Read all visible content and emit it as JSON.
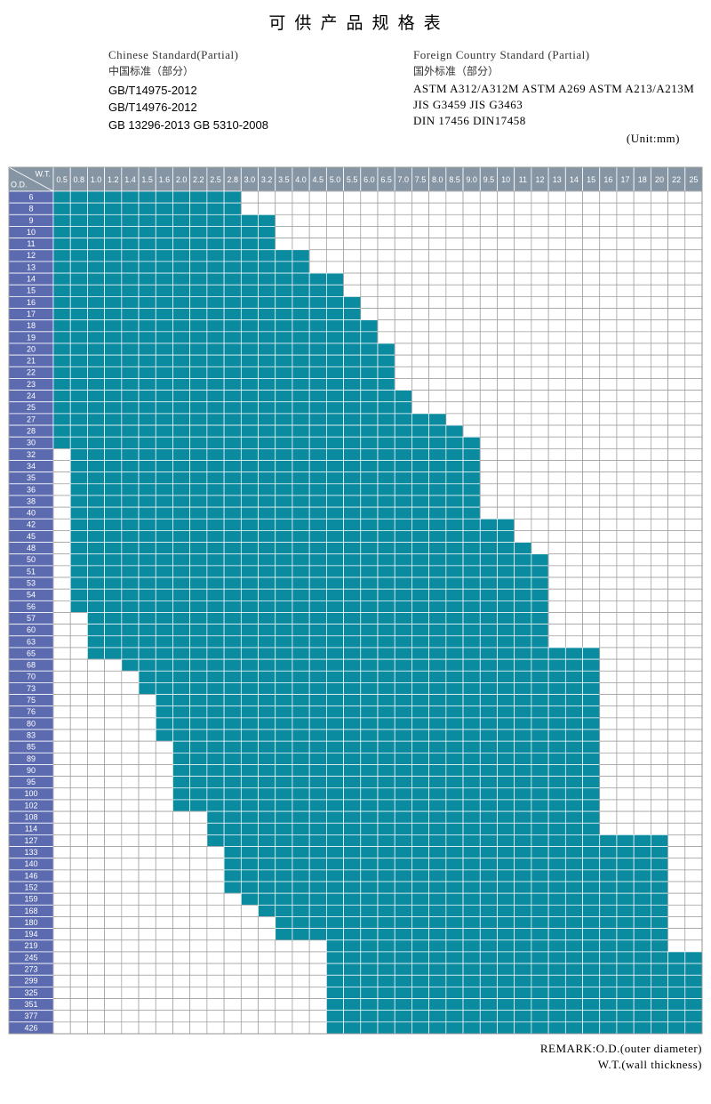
{
  "header": {
    "title": "可 供 产 品 规 格 表",
    "left": {
      "heading": "Chinese Standard(Partial)",
      "heading_cn": "中国标准（部分）",
      "lines": [
        "GB/T14975-2012",
        "GB/T14976-2012",
        "GB 13296-2013 GB 5310-2008"
      ]
    },
    "right": {
      "heading": "Foreign Country Standard (Partial)",
      "heading_cn": "国外标准（部分）",
      "lines": [
        "ASTM A312/A312M  ASTM A269 ASTM A213/A213M",
        "JIS G3459 JIS G3463",
        "DIN 17456 DIN17458"
      ]
    },
    "unit": "(Unit:mm)"
  },
  "table": {
    "corner_wt": "W.T.",
    "corner_od": "O.D.",
    "columns": [
      "0.5",
      "0.8",
      "1.0",
      "1.2",
      "1.4",
      "1.5",
      "1.6",
      "2.0",
      "2.2",
      "2.5",
      "2.8",
      "3.0",
      "3.2",
      "3.5",
      "4.0",
      "4.5",
      "5.0",
      "5.5",
      "6.0",
      "6.5",
      "7.0",
      "7.5",
      "8.0",
      "8.5",
      "9.0",
      "9.5",
      "10",
      "11",
      "12",
      "13",
      "14",
      "15",
      "16",
      "17",
      "18",
      "20",
      "22",
      "25"
    ],
    "rows": [
      {
        "od": "6",
        "fill": [
          0,
          10
        ]
      },
      {
        "od": "8",
        "fill": [
          0,
          10
        ]
      },
      {
        "od": "9",
        "fill": [
          0,
          12
        ]
      },
      {
        "od": "10",
        "fill": [
          0,
          12
        ]
      },
      {
        "od": "11",
        "fill": [
          0,
          12
        ]
      },
      {
        "od": "12",
        "fill": [
          0,
          14
        ]
      },
      {
        "od": "13",
        "fill": [
          0,
          14
        ]
      },
      {
        "od": "14",
        "fill": [
          0,
          16
        ]
      },
      {
        "od": "15",
        "fill": [
          0,
          16
        ]
      },
      {
        "od": "16",
        "fill": [
          0,
          17
        ]
      },
      {
        "od": "17",
        "fill": [
          0,
          17
        ]
      },
      {
        "od": "18",
        "fill": [
          0,
          18
        ]
      },
      {
        "od": "19",
        "fill": [
          0,
          18
        ]
      },
      {
        "od": "20",
        "fill": [
          0,
          19
        ]
      },
      {
        "od": "21",
        "fill": [
          0,
          19
        ]
      },
      {
        "od": "22",
        "fill": [
          0,
          19
        ]
      },
      {
        "od": "23",
        "fill": [
          0,
          19
        ]
      },
      {
        "od": "24",
        "fill": [
          0,
          20
        ]
      },
      {
        "od": "25",
        "fill": [
          0,
          20
        ]
      },
      {
        "od": "27",
        "fill": [
          0,
          22
        ]
      },
      {
        "od": "28",
        "fill": [
          0,
          23
        ]
      },
      {
        "od": "30",
        "fill": [
          0,
          24
        ]
      },
      {
        "od": "32",
        "fill": [
          1,
          24
        ]
      },
      {
        "od": "34",
        "fill": [
          1,
          24
        ]
      },
      {
        "od": "35",
        "fill": [
          1,
          24
        ]
      },
      {
        "od": "36",
        "fill": [
          1,
          24
        ]
      },
      {
        "od": "38",
        "fill": [
          1,
          24
        ]
      },
      {
        "od": "40",
        "fill": [
          1,
          24
        ]
      },
      {
        "od": "42",
        "fill": [
          1,
          26
        ]
      },
      {
        "od": "45",
        "fill": [
          1,
          26
        ]
      },
      {
        "od": "48",
        "fill": [
          1,
          27
        ]
      },
      {
        "od": "50",
        "fill": [
          1,
          28
        ]
      },
      {
        "od": "51",
        "fill": [
          1,
          28
        ]
      },
      {
        "od": "53",
        "fill": [
          1,
          28
        ]
      },
      {
        "od": "54",
        "fill": [
          1,
          28
        ]
      },
      {
        "od": "56",
        "fill": [
          1,
          28
        ]
      },
      {
        "od": "57",
        "fill": [
          2,
          28
        ]
      },
      {
        "od": "60",
        "fill": [
          2,
          28
        ]
      },
      {
        "od": "63",
        "fill": [
          2,
          28
        ]
      },
      {
        "od": "65",
        "fill": [
          2,
          31
        ]
      },
      {
        "od": "68",
        "fill": [
          4,
          31
        ]
      },
      {
        "od": "70",
        "fill": [
          5,
          31
        ]
      },
      {
        "od": "73",
        "fill": [
          5,
          31
        ]
      },
      {
        "od": "75",
        "fill": [
          6,
          31
        ]
      },
      {
        "od": "76",
        "fill": [
          6,
          31
        ]
      },
      {
        "od": "80",
        "fill": [
          6,
          31
        ]
      },
      {
        "od": "83",
        "fill": [
          6,
          31
        ]
      },
      {
        "od": "85",
        "fill": [
          7,
          31
        ]
      },
      {
        "od": "89",
        "fill": [
          7,
          31
        ]
      },
      {
        "od": "90",
        "fill": [
          7,
          31
        ]
      },
      {
        "od": "95",
        "fill": [
          7,
          31
        ]
      },
      {
        "od": "100",
        "fill": [
          7,
          31
        ]
      },
      {
        "od": "102",
        "fill": [
          7,
          31
        ]
      },
      {
        "od": "108",
        "fill": [
          9,
          31
        ]
      },
      {
        "od": "114",
        "fill": [
          9,
          31
        ]
      },
      {
        "od": "127",
        "fill": [
          9,
          35
        ]
      },
      {
        "od": "133",
        "fill": [
          10,
          35
        ]
      },
      {
        "od": "140",
        "fill": [
          10,
          35
        ]
      },
      {
        "od": "146",
        "fill": [
          10,
          35
        ]
      },
      {
        "od": "152",
        "fill": [
          10,
          35
        ]
      },
      {
        "od": "159",
        "fill": [
          11,
          35
        ]
      },
      {
        "od": "168",
        "fill": [
          12,
          35
        ]
      },
      {
        "od": "180",
        "fill": [
          13,
          35
        ]
      },
      {
        "od": "194",
        "fill": [
          13,
          35
        ]
      },
      {
        "od": "219",
        "fill": [
          16,
          35
        ]
      },
      {
        "od": "245",
        "fill": [
          16,
          37
        ]
      },
      {
        "od": "273",
        "fill": [
          16,
          37
        ]
      },
      {
        "od": "299",
        "fill": [
          16,
          37
        ]
      },
      {
        "od": "325",
        "fill": [
          16,
          37
        ]
      },
      {
        "od": "351",
        "fill": [
          16,
          37
        ]
      },
      {
        "od": "377",
        "fill": [
          16,
          37
        ]
      },
      {
        "od": "426",
        "fill": [
          16,
          37
        ]
      }
    ]
  },
  "remark": [
    "REMARK:O.D.(outer diameter)",
    "W.T.(wall thickness)"
  ]
}
